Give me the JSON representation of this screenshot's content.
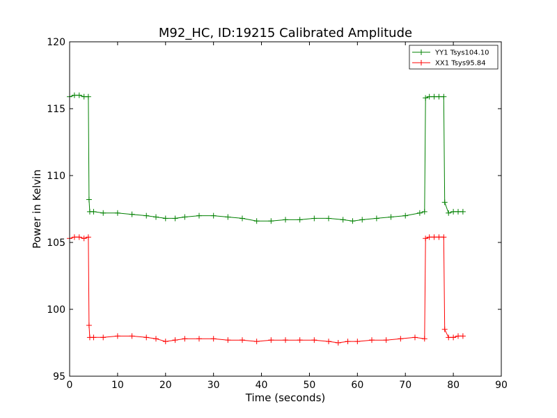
{
  "chart_data": {
    "type": "line",
    "title": "M92_HC, ID:19215 Calibrated Amplitude",
    "xlabel": "Time (seconds)",
    "ylabel": "Power in Kelvin",
    "xlim": [
      0,
      90
    ],
    "ylim": [
      95,
      120
    ],
    "x_ticks": [
      0,
      10,
      20,
      30,
      40,
      50,
      60,
      70,
      80,
      90
    ],
    "y_ticks": [
      95,
      100,
      105,
      110,
      115,
      120
    ],
    "x_tick_labels": [
      "0",
      "10",
      "20",
      "30",
      "40",
      "50",
      "60",
      "70",
      "80",
      "90"
    ],
    "y_tick_labels": [
      "95",
      "100",
      "105",
      "110",
      "115",
      "120"
    ],
    "grid": false,
    "legend_position": "top-right",
    "marker": "+",
    "series": [
      {
        "name": "YY1 Tsys104.10",
        "color": "#008000",
        "x": [
          0,
          1,
          2,
          3,
          3.9,
          4.05,
          4.2,
          5,
          7,
          10,
          13,
          16,
          18,
          20,
          22,
          24,
          27,
          30,
          33,
          36,
          39,
          42,
          45,
          48,
          51,
          54,
          57,
          59,
          61,
          64,
          67,
          70,
          73,
          74.0,
          74.2,
          75,
          76,
          77,
          78.0,
          78.2,
          79,
          80,
          81,
          82
        ],
        "values": [
          115.9,
          116.0,
          116.0,
          115.9,
          115.9,
          108.2,
          107.3,
          107.3,
          107.2,
          107.2,
          107.1,
          107.0,
          106.9,
          106.8,
          106.8,
          106.9,
          107.0,
          107.0,
          106.9,
          106.8,
          106.6,
          106.6,
          106.7,
          106.7,
          106.8,
          106.8,
          106.7,
          106.6,
          106.7,
          106.8,
          106.9,
          107.0,
          107.2,
          107.3,
          115.8,
          115.9,
          115.9,
          115.9,
          115.9,
          108.0,
          107.2,
          107.3,
          107.3,
          107.3
        ]
      },
      {
        "name": "XX1 Tsys95.84",
        "color": "#ff0000",
        "x": [
          0,
          1,
          2,
          3,
          3.9,
          4.05,
          4.2,
          5,
          7,
          10,
          13,
          16,
          18,
          20,
          22,
          24,
          27,
          30,
          33,
          36,
          39,
          42,
          45,
          48,
          51,
          54,
          56,
          58,
          60,
          63,
          66,
          69,
          72,
          74.0,
          74.2,
          75,
          76,
          77,
          78.0,
          78.2,
          79,
          80,
          81,
          82
        ],
        "values": [
          105.3,
          105.4,
          105.4,
          105.3,
          105.4,
          98.8,
          97.9,
          97.9,
          97.9,
          98.0,
          98.0,
          97.9,
          97.8,
          97.6,
          97.7,
          97.8,
          97.8,
          97.8,
          97.7,
          97.7,
          97.6,
          97.7,
          97.7,
          97.7,
          97.7,
          97.6,
          97.5,
          97.6,
          97.6,
          97.7,
          97.7,
          97.8,
          97.9,
          97.8,
          105.3,
          105.4,
          105.4,
          105.4,
          105.4,
          98.5,
          97.9,
          97.9,
          98.0,
          98.0
        ]
      }
    ]
  }
}
